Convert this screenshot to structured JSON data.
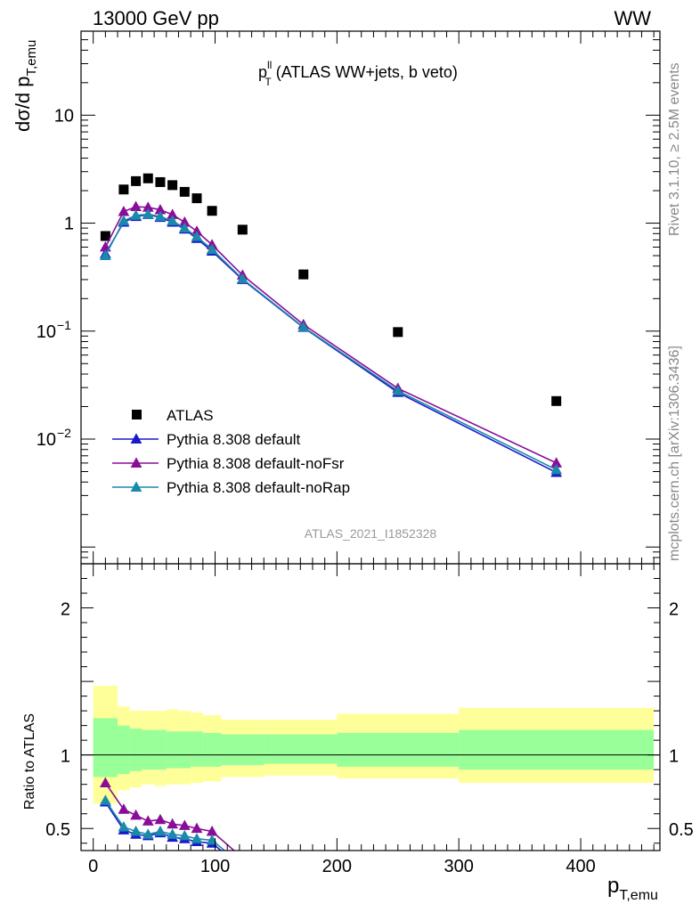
{
  "header": {
    "left": "13000 GeV pp",
    "right": "WW"
  },
  "side_text": {
    "rivet": "Rivet 3.1.10, ≥ 2.5M events",
    "mcplots": "mcplots.cern.ch [arXiv:1306.3436]"
  },
  "analysis_id": "ATLAS_2021_I1852328",
  "chart_data": [
    {
      "type": "scatter",
      "panel": "main",
      "title": "p_T^ll (ATLAS WW+jets, b veto)",
      "title_main": "p",
      "title_sup": "ll",
      "title_sub": "T",
      "title_rest": " (ATLAS WW+jets, b veto)",
      "ylabel_main": "dσ/d p",
      "ylabel_sub": "T,emu",
      "yscale": "log",
      "xlim": [
        -10,
        465
      ],
      "ylim": [
        0.0007,
        60
      ],
      "yticks": [
        {
          "value": 10,
          "label": "10"
        },
        {
          "value": 1,
          "label": "1"
        },
        {
          "value": 0.1,
          "label": "10",
          "sup": "−1"
        },
        {
          "value": 0.01,
          "label": "10",
          "sup": "−2"
        }
      ],
      "legend_position": "bottom-left",
      "series": [
        {
          "name": "ATLAS",
          "color": "#000000",
          "marker": "square",
          "x": [
            10,
            25,
            35,
            45,
            55,
            65,
            75,
            85,
            97.5,
            122.5,
            172.5,
            250,
            380
          ],
          "y": [
            0.76,
            2.05,
            2.45,
            2.6,
            2.4,
            2.25,
            1.95,
            1.7,
            1.3,
            0.87,
            0.335,
            0.098,
            0.0225
          ]
        },
        {
          "name": "Pythia 8.308 default",
          "color": "#1a1acc",
          "marker": "triangle",
          "x": [
            10,
            25,
            35,
            45,
            55,
            65,
            75,
            85,
            97.5,
            122.5,
            172.5,
            250,
            380
          ],
          "y": [
            0.52,
            1.02,
            1.15,
            1.2,
            1.13,
            1.02,
            0.88,
            0.72,
            0.55,
            0.3,
            0.108,
            0.027,
            0.0049
          ]
        },
        {
          "name": "Pythia 8.308 default-noFsr",
          "color": "#8a0d9a",
          "marker": "triangle",
          "x": [
            10,
            25,
            35,
            45,
            55,
            65,
            75,
            85,
            97.5,
            122.5,
            172.5,
            250,
            380
          ],
          "y": [
            0.6,
            1.28,
            1.42,
            1.4,
            1.33,
            1.2,
            1.02,
            0.84,
            0.63,
            0.33,
            0.115,
            0.0295,
            0.006
          ]
        },
        {
          "name": "Pythia 8.308 default-noRap",
          "color": "#1a8aaa",
          "marker": "triangle",
          "x": [
            10,
            25,
            35,
            45,
            55,
            65,
            75,
            85,
            97.5,
            122.5,
            172.5,
            250,
            380
          ],
          "y": [
            0.5,
            1.05,
            1.18,
            1.21,
            1.15,
            1.05,
            0.9,
            0.75,
            0.57,
            0.305,
            0.109,
            0.028,
            0.0052
          ]
        }
      ]
    },
    {
      "type": "line",
      "panel": "ratio",
      "ylabel": "Ratio to ATLAS",
      "xlabel_main": "p",
      "xlabel_sub": "T,emu",
      "xlim": [
        -10,
        465
      ],
      "ylim": [
        0.35,
        2.3
      ],
      "xticks": [
        0,
        100,
        200,
        300,
        400
      ],
      "yticks": [
        0.5,
        1,
        2
      ],
      "bins": [
        0,
        20,
        30,
        40,
        50,
        60,
        70,
        80,
        90,
        105,
        140,
        200,
        300,
        460
      ],
      "bands": {
        "green": {
          "color": "#99ff99",
          "lo": [
            0.85,
            0.87,
            0.89,
            0.9,
            0.9,
            0.91,
            0.91,
            0.92,
            0.92,
            0.93,
            0.94,
            0.92,
            0.9
          ],
          "hi": [
            1.25,
            1.2,
            1.18,
            1.17,
            1.17,
            1.16,
            1.16,
            1.16,
            1.15,
            1.14,
            1.14,
            1.15,
            1.17
          ]
        },
        "yellow": {
          "color": "#ffff99",
          "lo": [
            0.67,
            0.76,
            0.78,
            0.8,
            0.79,
            0.8,
            0.8,
            0.81,
            0.82,
            0.85,
            0.86,
            0.84,
            0.81
          ],
          "hi": [
            1.47,
            1.33,
            1.3,
            1.3,
            1.3,
            1.31,
            1.3,
            1.29,
            1.27,
            1.24,
            1.24,
            1.28,
            1.32
          ]
        }
      },
      "series": [
        {
          "name": "Pythia 8.308 default",
          "color": "#1a1acc",
          "x": [
            10,
            25,
            35,
            45,
            55,
            65,
            75,
            85,
            97.5,
            122.5
          ],
          "y": [
            0.68,
            0.49,
            0.46,
            0.45,
            0.47,
            0.44,
            0.43,
            0.41,
            0.4,
            0.23
          ]
        },
        {
          "name": "Pythia 8.308 default-noFsr",
          "color": "#8a0d9a",
          "x": [
            10,
            25,
            35,
            45,
            55,
            65,
            75,
            85,
            97.5,
            122.5
          ],
          "y": [
            0.81,
            0.63,
            0.59,
            0.55,
            0.56,
            0.53,
            0.52,
            0.5,
            0.48,
            0.3
          ]
        },
        {
          "name": "Pythia 8.308 default-noRap",
          "color": "#1a8aaa",
          "x": [
            10,
            25,
            35,
            45,
            55,
            65,
            75,
            85,
            97.5,
            122.5
          ],
          "y": [
            0.69,
            0.51,
            0.48,
            0.46,
            0.48,
            0.46,
            0.45,
            0.43,
            0.42,
            0.25
          ]
        }
      ]
    }
  ]
}
